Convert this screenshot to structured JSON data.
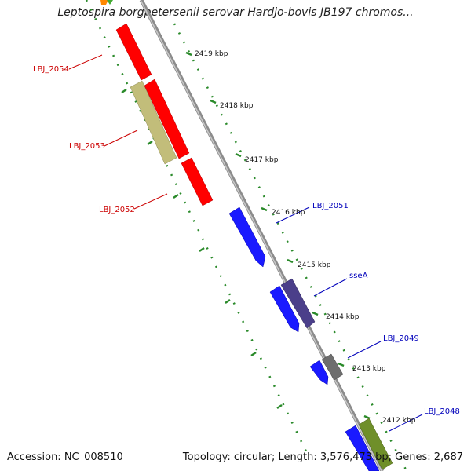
{
  "title": "Leptospira borgpetersenii serovar Hardjo-bovis JB197 chromos...",
  "footer": {
    "accession": "Accession: NC_008510",
    "summary": "Topology: circular; Length: 3,576,473 bp; Genes: 2,687"
  },
  "colors": {
    "backbone": "#8c8c8c",
    "tick": "#2a8a2a",
    "reverse_strand_label": "#cc0000",
    "forward_strand_label": "#0000bb",
    "red_gene": "#ff0000",
    "blue_gene": "#1a1aff",
    "khaki_gene": "#c2bd7a",
    "purple_gene": "#4b3f8a",
    "grey_gene": "#6e6e6e",
    "olive_gene": "#6f8f2a"
  },
  "kbp_labels": [
    "2419 kbp",
    "2418 kbp",
    "2417 kbp",
    "2416 kbp",
    "2415 kbp",
    "2414 kbp",
    "2413 kbp",
    "2412 kbp"
  ],
  "gene_labels": [
    {
      "text": "LBJ_2054",
      "strand": "reverse"
    },
    {
      "text": "LBJ_2053",
      "strand": "reverse"
    },
    {
      "text": "LBJ_2052",
      "strand": "reverse"
    },
    {
      "text": "LBJ_2051",
      "strand": "forward"
    },
    {
      "text": "sseA",
      "strand": "forward"
    },
    {
      "text": "LBJ_2049",
      "strand": "forward"
    },
    {
      "text": "LBJ_2048",
      "strand": "forward"
    }
  ]
}
